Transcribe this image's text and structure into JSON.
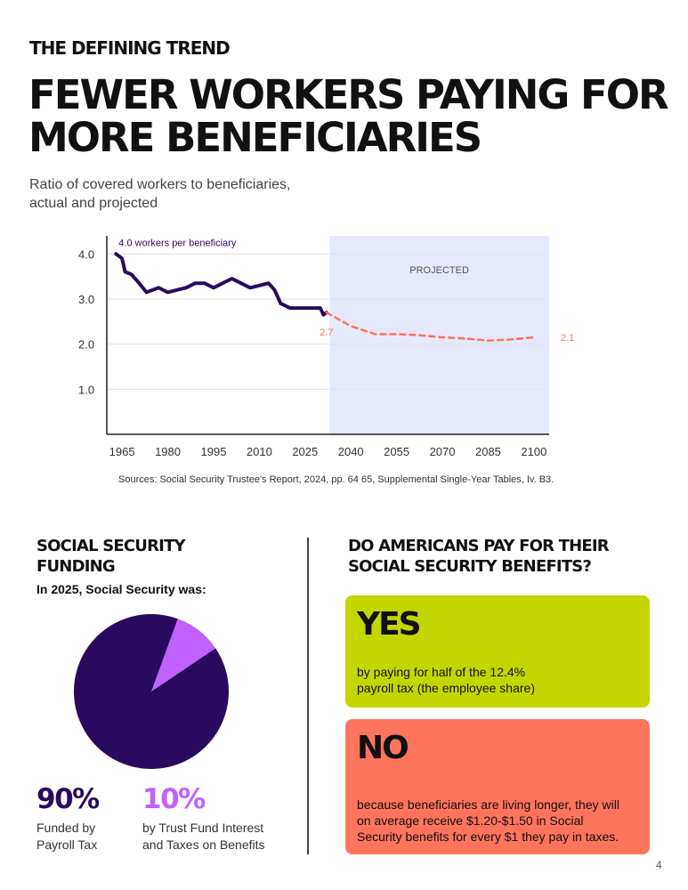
{
  "header": {
    "kicker": "THE DEFINING TREND",
    "headline": "FEWER WORKERS PAYING FOR MORE BENEFICIARIES",
    "subhead": "Ratio of covered workers to beneficiaries, actual and projected"
  },
  "chart_data": {
    "type": "line",
    "title": "Ratio of covered workers to beneficiaries, actual and projected",
    "xlabel": "",
    "ylabel": "",
    "xlim": [
      1960,
      2105
    ],
    "ylim": [
      0,
      4.4
    ],
    "x_ticks": [
      1965,
      1980,
      1995,
      2010,
      2025,
      2040,
      2055,
      2070,
      2085,
      2100
    ],
    "y_ticks": [
      1.0,
      2.0,
      3.0,
      4.0
    ],
    "y_tick_labels": [
      "1.0",
      "2.0",
      "3.0",
      "4.0"
    ],
    "projected_region": {
      "from": 2033,
      "to": 2105,
      "label": "PROJECTED"
    },
    "series": [
      {
        "name": "Actual",
        "color": "#2a0a5e",
        "style": "solid",
        "x": [
          1963,
          1965,
          1966,
          1968,
          1970,
          1973,
          1977,
          1980,
          1983,
          1986,
          1989,
          1992,
          1995,
          1998,
          2001,
          2004,
          2007,
          2010,
          2013,
          2015,
          2017,
          2020,
          2023,
          2026,
          2028,
          2030,
          2031,
          2032
        ],
        "y": [
          4.0,
          3.9,
          3.6,
          3.55,
          3.4,
          3.15,
          3.25,
          3.15,
          3.2,
          3.25,
          3.35,
          3.35,
          3.25,
          3.35,
          3.45,
          3.35,
          3.25,
          3.3,
          3.35,
          3.2,
          2.9,
          2.8,
          2.8,
          2.8,
          2.8,
          2.8,
          2.65,
          2.7
        ]
      },
      {
        "name": "Projected",
        "color": "#ff745c",
        "style": "dashed",
        "x": [
          2032,
          2040,
          2048,
          2055,
          2062,
          2070,
          2078,
          2085,
          2092,
          2100
        ],
        "y": [
          2.7,
          2.4,
          2.22,
          2.22,
          2.2,
          2.15,
          2.12,
          2.08,
          2.1,
          2.15
        ]
      }
    ],
    "annotations": [
      {
        "text": "4.0 workers per beneficiary",
        "x": 1963,
        "y": 4.0,
        "color": "#2a0a5e"
      },
      {
        "text": "2.7",
        "x": 2032,
        "y": 2.7,
        "color": "#ff745c"
      },
      {
        "text": "2.1",
        "x": 2100,
        "y": 2.15,
        "color": "#ff745c"
      }
    ],
    "colors": {
      "projected_bg": "#e6e9fb",
      "grid": "#e2e2e2",
      "axis": "#222222",
      "tick_text": "#333333"
    }
  },
  "sources": "Sources: Social Security Trustee's Report, 2024, pp. 64 65, Supplemental Single-Year Tables, Iv. B3.",
  "funding": {
    "title": "SOCIAL SECURITY FUNDING",
    "subtitle": "In 2025, Social Security was:",
    "pie": [
      {
        "name": "Funded by Payroll Tax",
        "value": 90,
        "color": "#2a0a5e"
      },
      {
        "name": "by Trust Fund Interest and Taxes on Benefits",
        "value": 10,
        "color": "#c061ff"
      }
    ],
    "items": [
      {
        "pct": "90%",
        "label_line1": "Funded by",
        "label_line2": "Payroll Tax",
        "color": "#2a0a5e"
      },
      {
        "pct": "10%",
        "label_line1": "by Trust Fund Interest",
        "label_line2": "and Taxes on Benefits",
        "color": "#c061ff"
      }
    ]
  },
  "question": {
    "title": "DO AMERICANS PAY FOR THEIR SOCIAL SECURITY BENEFITS?",
    "yes": {
      "heading": "YES",
      "line1": "by paying for half of the 12.4%",
      "line2": "payroll tax (the employee share)",
      "color": "#c4d600"
    },
    "no": {
      "heading": "NO",
      "line1": "because beneficiaries are living longer, they will",
      "line2": "on average receive $1.20-$1.50 in Social",
      "line3": "Security benefits for every $1 they pay in taxes.",
      "color": "#ff745c"
    }
  },
  "page_number": "4"
}
